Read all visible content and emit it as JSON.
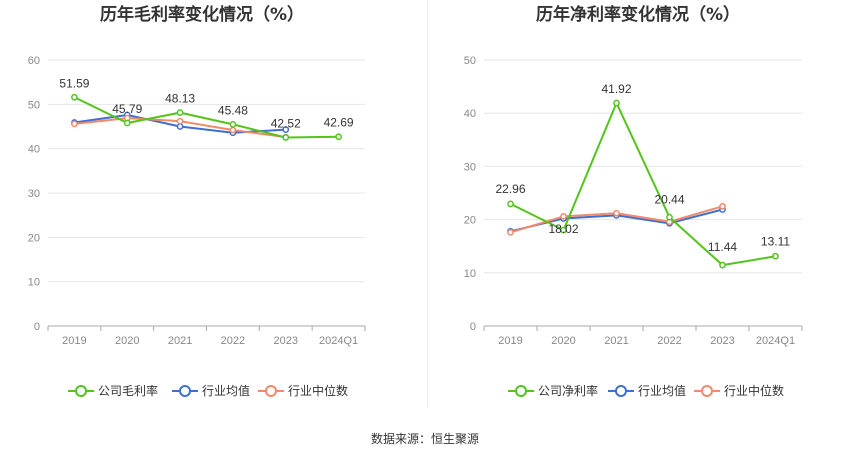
{
  "source_text": "数据来源：恒生聚源",
  "colors": {
    "company": "#52c41a",
    "avg": "#3f6fd1",
    "median": "#f08a6a",
    "grid": "#e6e6e6",
    "axis": "#aaaaaa"
  },
  "chart_data": [
    {
      "type": "line",
      "title": "历年毛利率变化情况（%）",
      "categories": [
        "2019",
        "2020",
        "2021",
        "2022",
        "2023",
        "2024Q1"
      ],
      "ylim": [
        0,
        60
      ],
      "yticks": [
        0,
        10,
        20,
        30,
        40,
        50,
        60
      ],
      "grid": true,
      "legend_position": "bottom",
      "series": [
        {
          "name": "公司毛利率",
          "key": "company",
          "values": [
            51.59,
            45.79,
            48.13,
            45.48,
            42.52,
            42.69
          ],
          "labels": [
            "51.59",
            "45.79",
            "48.13",
            "45.48",
            "42.52",
            "42.69"
          ]
        },
        {
          "name": "行业均值",
          "key": "avg",
          "values": [
            45.9,
            47.6,
            45.0,
            43.6,
            44.3,
            null
          ]
        },
        {
          "name": "行业中位数",
          "key": "median",
          "values": [
            45.6,
            46.9,
            46.2,
            44.2,
            42.6,
            null
          ]
        }
      ]
    },
    {
      "type": "line",
      "title": "历年净利率变化情况（%）",
      "categories": [
        "2019",
        "2020",
        "2021",
        "2022",
        "2023",
        "2024Q1"
      ],
      "ylim": [
        0,
        50
      ],
      "yticks": [
        0,
        10,
        20,
        30,
        40,
        50
      ],
      "grid": true,
      "legend_position": "bottom",
      "series": [
        {
          "name": "公司净利率",
          "key": "company",
          "values": [
            22.96,
            18.02,
            41.92,
            20.44,
            11.44,
            13.11
          ],
          "labels": [
            "22.96",
            "18.02",
            "41.92",
            "20.44",
            "11.44",
            "13.11"
          ]
        },
        {
          "name": "行业均值",
          "key": "avg",
          "values": [
            17.8,
            20.2,
            20.8,
            19.3,
            21.9,
            null
          ]
        },
        {
          "name": "行业中位数",
          "key": "median",
          "values": [
            17.6,
            20.6,
            21.2,
            19.6,
            22.5,
            null
          ]
        }
      ]
    }
  ]
}
